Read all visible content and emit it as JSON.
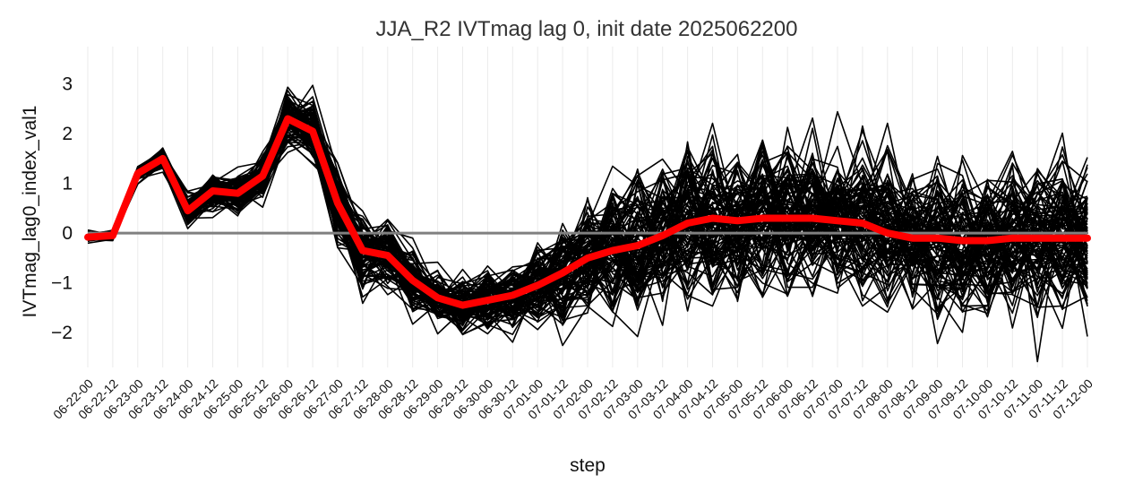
{
  "chart_data": {
    "type": "line",
    "title": "JJA_R2 IVTmag lag 0, init date 2025062200",
    "xlabel": "step",
    "ylabel": "IVTmag_lag0_index_val1",
    "ylim": [
      -2.7,
      3.75
    ],
    "yticks": [
      -2,
      -1,
      0,
      1,
      2,
      3
    ],
    "grid": "vertical",
    "categories": [
      "06-22-00",
      "06-22-12",
      "06-23-00",
      "06-23-12",
      "06-24-00",
      "06-24-12",
      "06-25-00",
      "06-25-12",
      "06-26-00",
      "06-26-12",
      "06-27-00",
      "06-27-12",
      "06-28-00",
      "06-28-12",
      "06-29-00",
      "06-29-12",
      "06-30-00",
      "06-30-12",
      "07-01-00",
      "07-01-12",
      "07-02-00",
      "07-02-12",
      "07-03-00",
      "07-03-12",
      "07-04-00",
      "07-04-12",
      "07-05-00",
      "07-05-12",
      "07-06-00",
      "07-06-12",
      "07-07-00",
      "07-07-12",
      "07-08-00",
      "07-08-12",
      "07-09-00",
      "07-09-12",
      "07-10-00",
      "07-10-12",
      "07-11-00",
      "07-11-12",
      "07-12-00"
    ],
    "reference_line": {
      "y": 0,
      "color": "#808080"
    },
    "ensemble": {
      "members": 100,
      "color": "#000000",
      "center": [
        -0.08,
        -0.05,
        1.2,
        1.5,
        0.45,
        0.85,
        0.8,
        1.15,
        2.3,
        2.05,
        0.6,
        -0.35,
        -0.45,
        -0.95,
        -1.3,
        -1.45,
        -1.35,
        -1.25,
        -1.05,
        -0.8,
        -0.5,
        -0.35,
        -0.25,
        -0.05,
        0.2,
        0.3,
        0.25,
        0.3,
        0.3,
        0.3,
        0.25,
        0.2,
        0.0,
        -0.1,
        -0.1,
        -0.15,
        -0.15,
        -0.1,
        -0.1,
        -0.1,
        -0.1
      ],
      "spread": [
        0.06,
        0.06,
        0.1,
        0.12,
        0.2,
        0.22,
        0.24,
        0.3,
        0.32,
        0.38,
        0.45,
        0.45,
        0.45,
        0.42,
        0.35,
        0.35,
        0.4,
        0.45,
        0.55,
        0.7,
        0.8,
        0.85,
        0.9,
        0.95,
        1.0,
        1.0,
        1.0,
        1.0,
        1.0,
        1.0,
        1.0,
        1.0,
        1.0,
        1.0,
        1.0,
        1.0,
        1.0,
        1.0,
        1.0,
        1.0,
        1.0
      ]
    },
    "series": [
      {
        "color": "#ff0000",
        "values": [
          -0.08,
          -0.05,
          1.2,
          1.5,
          0.45,
          0.85,
          0.8,
          1.15,
          2.3,
          2.05,
          0.6,
          -0.35,
          -0.45,
          -0.95,
          -1.3,
          -1.45,
          -1.35,
          -1.25,
          -1.05,
          -0.8,
          -0.5,
          -0.35,
          -0.25,
          -0.05,
          0.2,
          0.3,
          0.25,
          0.3,
          0.3,
          0.3,
          0.25,
          0.2,
          0.0,
          -0.1,
          -0.1,
          -0.15,
          -0.15,
          -0.1,
          -0.1,
          -0.1,
          -0.1
        ]
      }
    ]
  }
}
